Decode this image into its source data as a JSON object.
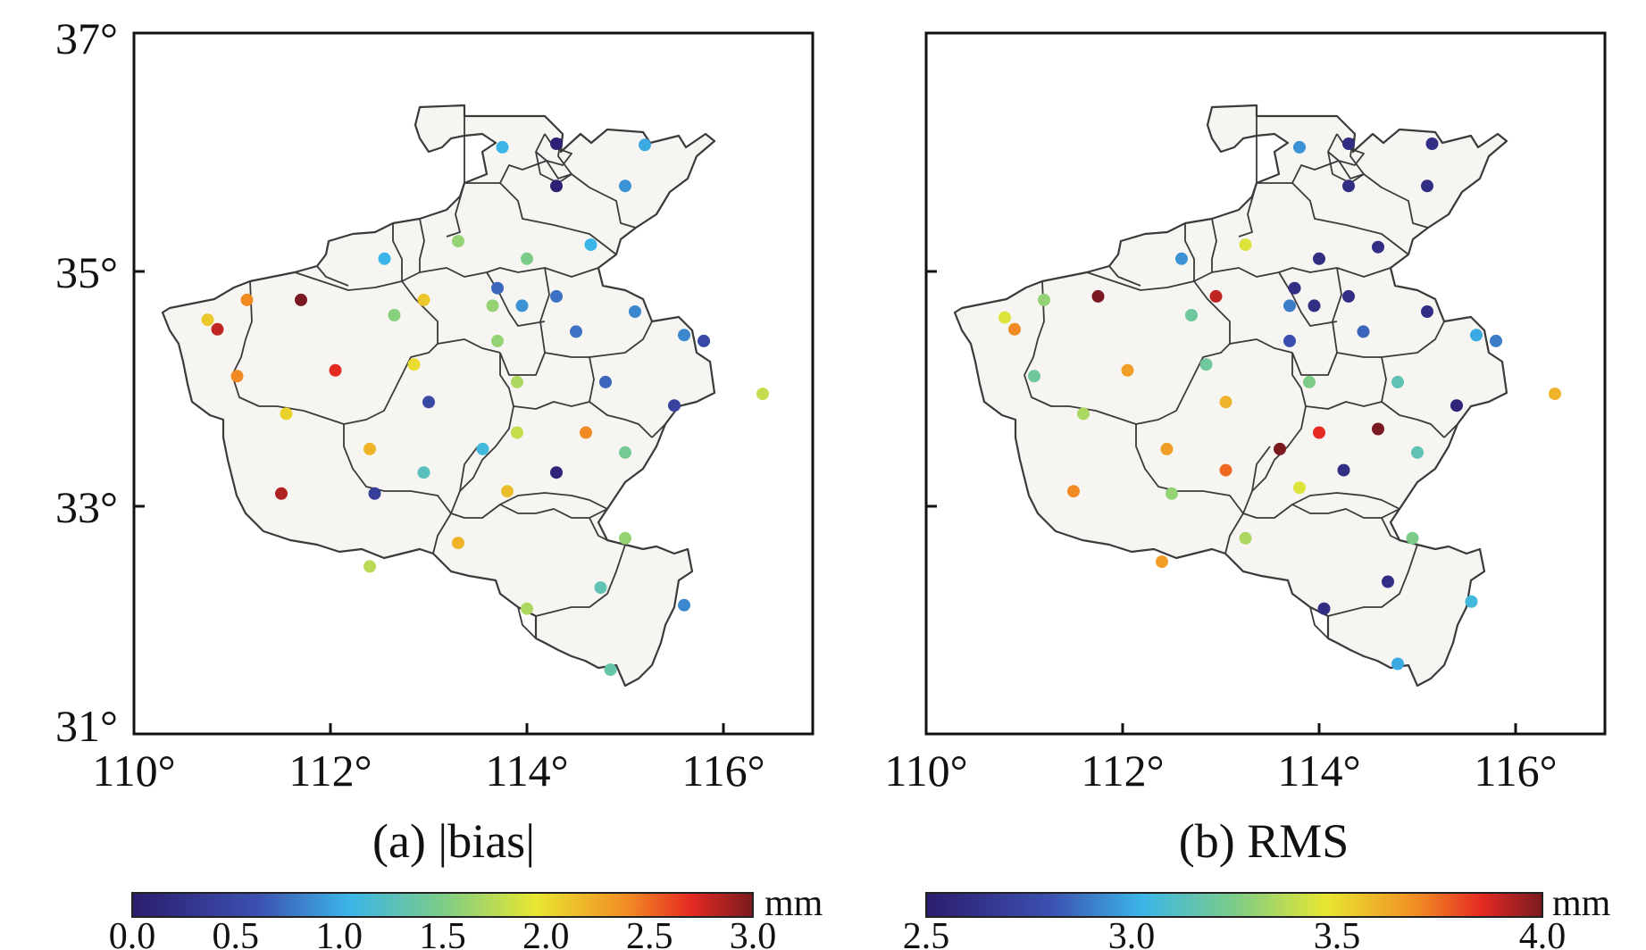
{
  "panels": [
    {
      "caption": "(a) |bias|",
      "x_ticks": [
        "110°",
        "112°",
        "114°",
        "116°"
      ],
      "y_ticks": [
        "37°",
        "35°",
        "33°",
        "31°"
      ],
      "colorbar": {
        "ticks": [
          "0.0",
          "0.5",
          "1.0",
          "1.5",
          "2.0",
          "2.5",
          "3.0"
        ],
        "unit": "mm"
      },
      "stations": [
        {
          "lon": 113.75,
          "lat": 36.05,
          "value": 1.05
        },
        {
          "lon": 114.3,
          "lat": 36.08,
          "value": 0.05
        },
        {
          "lon": 115.2,
          "lat": 36.07,
          "value": 1.0
        },
        {
          "lon": 114.3,
          "lat": 35.72,
          "value": 0.05
        },
        {
          "lon": 115.0,
          "lat": 35.72,
          "value": 0.9
        },
        {
          "lon": 114.65,
          "lat": 35.22,
          "value": 1.05
        },
        {
          "lon": 112.55,
          "lat": 35.1,
          "value": 1.05
        },
        {
          "lon": 113.3,
          "lat": 35.25,
          "value": 1.6
        },
        {
          "lon": 114.0,
          "lat": 35.1,
          "value": 1.5
        },
        {
          "lon": 110.75,
          "lat": 34.58,
          "value": 2.1
        },
        {
          "lon": 110.85,
          "lat": 34.5,
          "value": 2.8
        },
        {
          "lon": 111.15,
          "lat": 34.75,
          "value": 2.4
        },
        {
          "lon": 111.7,
          "lat": 34.75,
          "value": 3.0
        },
        {
          "lon": 112.65,
          "lat": 34.62,
          "value": 1.55
        },
        {
          "lon": 112.95,
          "lat": 34.75,
          "value": 2.1
        },
        {
          "lon": 113.7,
          "lat": 34.85,
          "value": 0.7
        },
        {
          "lon": 113.65,
          "lat": 34.7,
          "value": 1.6
        },
        {
          "lon": 113.95,
          "lat": 34.7,
          "value": 0.9
        },
        {
          "lon": 114.3,
          "lat": 34.78,
          "value": 0.75
        },
        {
          "lon": 115.1,
          "lat": 34.65,
          "value": 0.85
        },
        {
          "lon": 113.7,
          "lat": 34.4,
          "value": 1.6
        },
        {
          "lon": 114.5,
          "lat": 34.48,
          "value": 0.75
        },
        {
          "lon": 115.6,
          "lat": 34.45,
          "value": 0.85
        },
        {
          "lon": 115.8,
          "lat": 34.4,
          "value": 0.5
        },
        {
          "lon": 111.05,
          "lat": 34.1,
          "value": 2.4
        },
        {
          "lon": 112.05,
          "lat": 34.15,
          "value": 2.7
        },
        {
          "lon": 112.85,
          "lat": 34.2,
          "value": 2.0
        },
        {
          "lon": 113.9,
          "lat": 34.05,
          "value": 1.7
        },
        {
          "lon": 114.8,
          "lat": 34.05,
          "value": 0.7
        },
        {
          "lon": 116.4,
          "lat": 33.95,
          "value": 1.8
        },
        {
          "lon": 111.55,
          "lat": 33.78,
          "value": 2.05
        },
        {
          "lon": 113.0,
          "lat": 33.88,
          "value": 0.5
        },
        {
          "lon": 115.5,
          "lat": 33.85,
          "value": 0.45
        },
        {
          "lon": 113.9,
          "lat": 33.62,
          "value": 1.8
        },
        {
          "lon": 114.6,
          "lat": 33.62,
          "value": 2.4
        },
        {
          "lon": 112.4,
          "lat": 33.48,
          "value": 2.2
        },
        {
          "lon": 113.55,
          "lat": 33.48,
          "value": 1.1
        },
        {
          "lon": 115.0,
          "lat": 33.45,
          "value": 1.45
        },
        {
          "lon": 112.95,
          "lat": 33.28,
          "value": 1.25
        },
        {
          "lon": 114.3,
          "lat": 33.28,
          "value": 0.1
        },
        {
          "lon": 111.5,
          "lat": 33.1,
          "value": 2.85
        },
        {
          "lon": 112.45,
          "lat": 33.1,
          "value": 0.4
        },
        {
          "lon": 113.8,
          "lat": 33.12,
          "value": 2.15
        },
        {
          "lon": 115.0,
          "lat": 32.72,
          "value": 1.6
        },
        {
          "lon": 113.3,
          "lat": 32.68,
          "value": 2.2
        },
        {
          "lon": 112.4,
          "lat": 32.48,
          "value": 1.75
        },
        {
          "lon": 114.75,
          "lat": 32.3,
          "value": 1.3
        },
        {
          "lon": 115.6,
          "lat": 32.15,
          "value": 0.85
        },
        {
          "lon": 114.0,
          "lat": 32.12,
          "value": 1.7
        },
        {
          "lon": 114.85,
          "lat": 31.6,
          "value": 1.35
        }
      ]
    },
    {
      "caption": "(b) RMS",
      "x_ticks": [
        "110°",
        "112°",
        "114°",
        "116°"
      ],
      "colorbar": {
        "ticks": [
          "2.5",
          "3.0",
          "3.5",
          "4.0"
        ],
        "unit": "mm"
      },
      "stations": [
        {
          "lon": 113.8,
          "lat": 36.05,
          "value": 2.95
        },
        {
          "lon": 114.3,
          "lat": 36.08,
          "value": 2.6
        },
        {
          "lon": 115.15,
          "lat": 36.08,
          "value": 2.6
        },
        {
          "lon": 114.3,
          "lat": 35.72,
          "value": 2.6
        },
        {
          "lon": 115.1,
          "lat": 35.72,
          "value": 2.6
        },
        {
          "lon": 112.6,
          "lat": 35.1,
          "value": 2.95
        },
        {
          "lon": 113.25,
          "lat": 35.22,
          "value": 3.45
        },
        {
          "lon": 114.0,
          "lat": 35.1,
          "value": 2.6
        },
        {
          "lon": 114.6,
          "lat": 35.2,
          "value": 2.6
        },
        {
          "lon": 110.8,
          "lat": 34.6,
          "value": 3.45
        },
        {
          "lon": 110.9,
          "lat": 34.5,
          "value": 3.7
        },
        {
          "lon": 111.2,
          "lat": 34.75,
          "value": 3.3
        },
        {
          "lon": 111.75,
          "lat": 34.78,
          "value": 4.0
        },
        {
          "lon": 112.7,
          "lat": 34.62,
          "value": 3.2
        },
        {
          "lon": 112.95,
          "lat": 34.78,
          "value": 3.9
        },
        {
          "lon": 113.75,
          "lat": 34.85,
          "value": 2.6
        },
        {
          "lon": 113.7,
          "lat": 34.7,
          "value": 2.9
        },
        {
          "lon": 113.95,
          "lat": 34.7,
          "value": 2.6
        },
        {
          "lon": 114.3,
          "lat": 34.78,
          "value": 2.6
        },
        {
          "lon": 115.1,
          "lat": 34.65,
          "value": 2.6
        },
        {
          "lon": 113.7,
          "lat": 34.4,
          "value": 2.8
        },
        {
          "lon": 114.45,
          "lat": 34.48,
          "value": 2.85
        },
        {
          "lon": 115.6,
          "lat": 34.45,
          "value": 3.0
        },
        {
          "lon": 115.8,
          "lat": 34.4,
          "value": 2.9
        },
        {
          "lon": 111.1,
          "lat": 34.1,
          "value": 3.2
        },
        {
          "lon": 112.05,
          "lat": 34.15,
          "value": 3.65
        },
        {
          "lon": 112.85,
          "lat": 34.2,
          "value": 3.2
        },
        {
          "lon": 113.9,
          "lat": 34.05,
          "value": 3.25
        },
        {
          "lon": 114.8,
          "lat": 34.05,
          "value": 3.15
        },
        {
          "lon": 116.4,
          "lat": 33.95,
          "value": 3.6
        },
        {
          "lon": 111.6,
          "lat": 33.78,
          "value": 3.35
        },
        {
          "lon": 113.05,
          "lat": 33.88,
          "value": 3.6
        },
        {
          "lon": 115.4,
          "lat": 33.85,
          "value": 2.55
        },
        {
          "lon": 114.0,
          "lat": 33.62,
          "value": 3.85
        },
        {
          "lon": 114.6,
          "lat": 33.65,
          "value": 4.0
        },
        {
          "lon": 112.45,
          "lat": 33.48,
          "value": 3.65
        },
        {
          "lon": 113.6,
          "lat": 33.48,
          "value": 4.0
        },
        {
          "lon": 115.0,
          "lat": 33.45,
          "value": 3.15
        },
        {
          "lon": 113.05,
          "lat": 33.3,
          "value": 3.75
        },
        {
          "lon": 114.25,
          "lat": 33.3,
          "value": 2.6
        },
        {
          "lon": 111.5,
          "lat": 33.12,
          "value": 3.7
        },
        {
          "lon": 112.5,
          "lat": 33.1,
          "value": 3.3
        },
        {
          "lon": 113.8,
          "lat": 33.15,
          "value": 3.45
        },
        {
          "lon": 114.95,
          "lat": 32.72,
          "value": 3.25
        },
        {
          "lon": 113.25,
          "lat": 32.72,
          "value": 3.35
        },
        {
          "lon": 112.4,
          "lat": 32.52,
          "value": 3.65
        },
        {
          "lon": 114.7,
          "lat": 32.35,
          "value": 2.6
        },
        {
          "lon": 115.55,
          "lat": 32.18,
          "value": 3.05
        },
        {
          "lon": 114.05,
          "lat": 32.12,
          "value": 2.6
        },
        {
          "lon": 114.8,
          "lat": 31.65,
          "value": 3.0
        }
      ]
    }
  ]
}
